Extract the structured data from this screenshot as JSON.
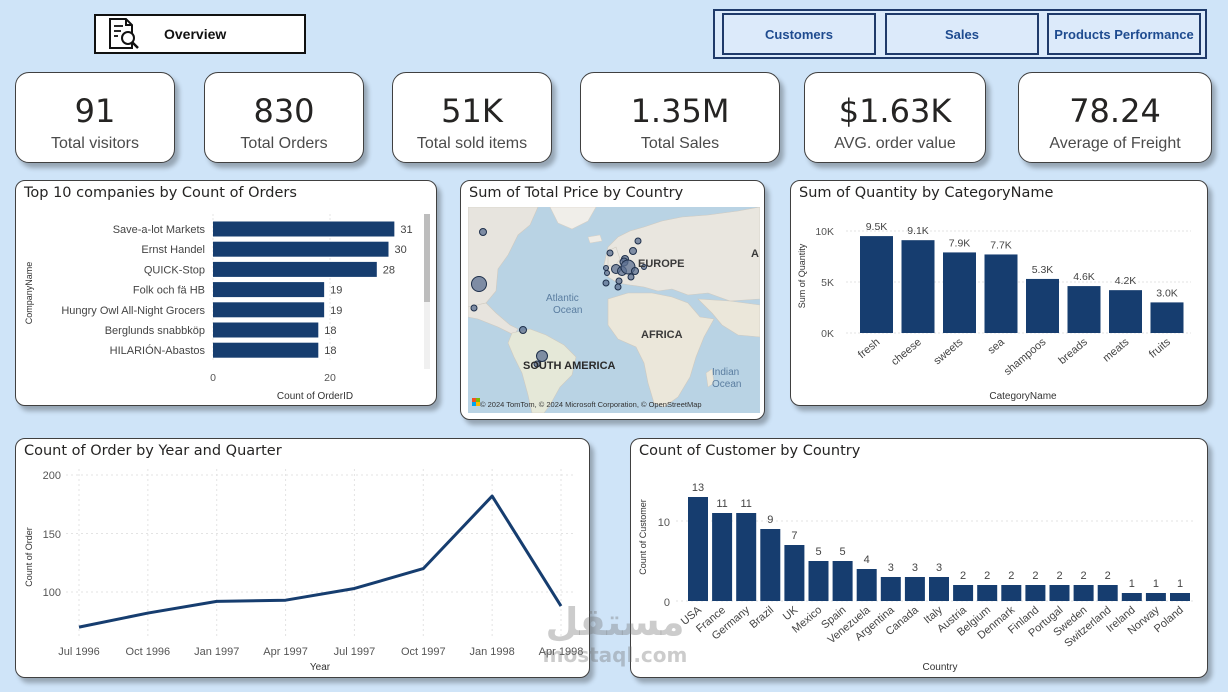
{
  "nav": {
    "overview_label": "Overview",
    "customers_label": "Customers",
    "sales_label": "Sales",
    "products_label": "Products Performance"
  },
  "kpis": [
    {
      "value": "91",
      "label": "Total visitors"
    },
    {
      "value": "830",
      "label": "Total Orders"
    },
    {
      "value": "51K",
      "label": "Total sold items"
    },
    {
      "value": "1.35M",
      "label": "Total Sales"
    },
    {
      "value": "$1.63K",
      "label": "AVG. order value"
    },
    {
      "value": "78.24",
      "label": "Average of Freight"
    }
  ],
  "colors": {
    "bar": "#163d6f",
    "background": "#cfe4f8"
  },
  "map": {
    "title": "Sum of Total Price by Country",
    "labels": {
      "europe": "EUROPE",
      "atlantic": "Atlantic",
      "ocean": "Ocean",
      "africa": "AFRICA",
      "south_america": "SOUTH AMERICA",
      "indian": "Indian",
      "indian_ocean": "Ocean",
      "asia": "A"
    },
    "attribution": "© 2024 TomTom, © 2024 Microsoft Corporation, © OpenStreetMap"
  },
  "watermark": {
    "arabic": "مستقل",
    "latin": "mostaql.com"
  },
  "chart_data": [
    {
      "type": "bar",
      "orientation": "horizontal",
      "title": "Top 10 companies by Count of Orders",
      "categories": [
        "Save-a-lot Markets",
        "Ernst Handel",
        "QUICK-Stop",
        "Folk och fä HB",
        "Hungry Owl All-Night Grocers",
        "Berglunds snabbköp",
        "HILARIÓN-Abastos"
      ],
      "values": [
        31,
        30,
        28,
        19,
        19,
        18,
        18
      ],
      "xlabel": "Count of OrderID",
      "ylabel": "CompanyName",
      "xticks": [
        "0",
        "20"
      ],
      "xlim": [
        0,
        36
      ]
    },
    {
      "type": "bar",
      "title": "Sum of Quantity by CategoryName",
      "categories": [
        "fresh",
        "cheese",
        "sweets",
        "sea",
        "shampoos",
        "breads",
        "meats",
        "fruits"
      ],
      "values": [
        9500,
        9100,
        7900,
        7700,
        5300,
        4600,
        4200,
        3000
      ],
      "value_labels": [
        "9.5K",
        "9.1K",
        "7.9K",
        "7.7K",
        "5.3K",
        "4.6K",
        "4.2K",
        "3.0K"
      ],
      "xlabel": "CategoryName",
      "ylabel": "Sum of Quantity",
      "yticks": [
        "0K",
        "5K",
        "10K"
      ],
      "ylim": [
        0,
        11000
      ]
    },
    {
      "type": "line",
      "title": "Count of Order by Year and Quarter",
      "categories": [
        "Jul 1996",
        "Oct 1996",
        "Jan 1997",
        "Apr 1997",
        "Jul 1997",
        "Oct 1997",
        "Jan 1998",
        "Apr 1998"
      ],
      "values": [
        70,
        82,
        92,
        93,
        103,
        120,
        182,
        88
      ],
      "xlabel": "Year",
      "ylabel": "Count of Order",
      "yticks": [
        "100",
        "150",
        "200"
      ],
      "ylim": [
        68,
        200
      ]
    },
    {
      "type": "bar",
      "title": "Count of Customer by Country",
      "categories": [
        "USA",
        "France",
        "Germany",
        "Brazil",
        "UK",
        "Mexico",
        "Spain",
        "Venezuela",
        "Argentina",
        "Canada",
        "Italy",
        "Austria",
        "Belgium",
        "Denmark",
        "Finland",
        "Portugal",
        "Sweden",
        "Switzerland",
        "Ireland",
        "Norway",
        "Poland"
      ],
      "values": [
        13,
        11,
        11,
        9,
        7,
        5,
        5,
        4,
        3,
        3,
        3,
        2,
        2,
        2,
        2,
        2,
        2,
        2,
        1,
        1,
        1
      ],
      "xlabel": "Country",
      "ylabel": "Count of Customer",
      "yticks": [
        "0",
        "10"
      ],
      "ylim": [
        0,
        14.5
      ]
    }
  ]
}
